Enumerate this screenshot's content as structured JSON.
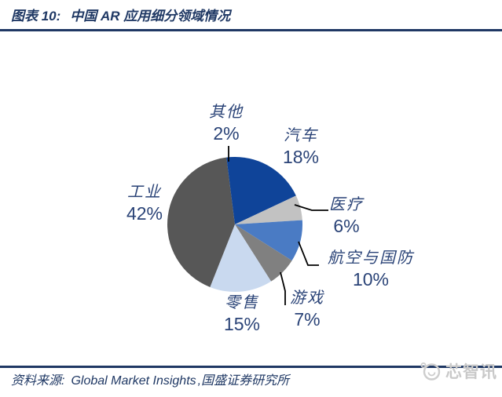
{
  "header": {
    "figure_label": "图表 10:",
    "title_text": "中国 AR 应用细分领域情况"
  },
  "chart_data": {
    "type": "pie",
    "title": "中国AR应用细分领域情况",
    "unit": "%",
    "total": 100,
    "start_angle_deg": 0,
    "direction": "clockwise",
    "legend": "none",
    "label_style": "outside-with-leader-lines",
    "slices": [
      {
        "id": "qiche",
        "label": "汽车",
        "value": 18,
        "display": "18%",
        "color": "#0F4499"
      },
      {
        "id": "yiliao",
        "label": "医疗",
        "value": 6,
        "display": "6%",
        "color": "#C2C2C2"
      },
      {
        "id": "hangkong",
        "label": "航空与国防",
        "value": 10,
        "display": "10%",
        "color": "#4A7BC4"
      },
      {
        "id": "youxi",
        "label": "游戏",
        "value": 7,
        "display": "7%",
        "color": "#808080"
      },
      {
        "id": "lingshou",
        "label": "零售",
        "value": 15,
        "display": "15%",
        "color": "#C9D9EF"
      },
      {
        "id": "gongye",
        "label": "工业",
        "value": 42,
        "display": "42%",
        "color": "#575757"
      },
      {
        "id": "qita",
        "label": "其他",
        "value": 2,
        "display": "2%",
        "color": "#0F4499"
      }
    ]
  },
  "footer": {
    "source_prefix": "资料来源:",
    "source_en": "Global Market Insights",
    "source_suffix": ",国盛证券研究所"
  },
  "watermark": {
    "text": "芯智讯"
  },
  "colors": {
    "accent_navy": "#1F3864",
    "label_text": "#2A4377",
    "leader_line": "#000000",
    "watermark_gray": "#C9C9C9"
  }
}
